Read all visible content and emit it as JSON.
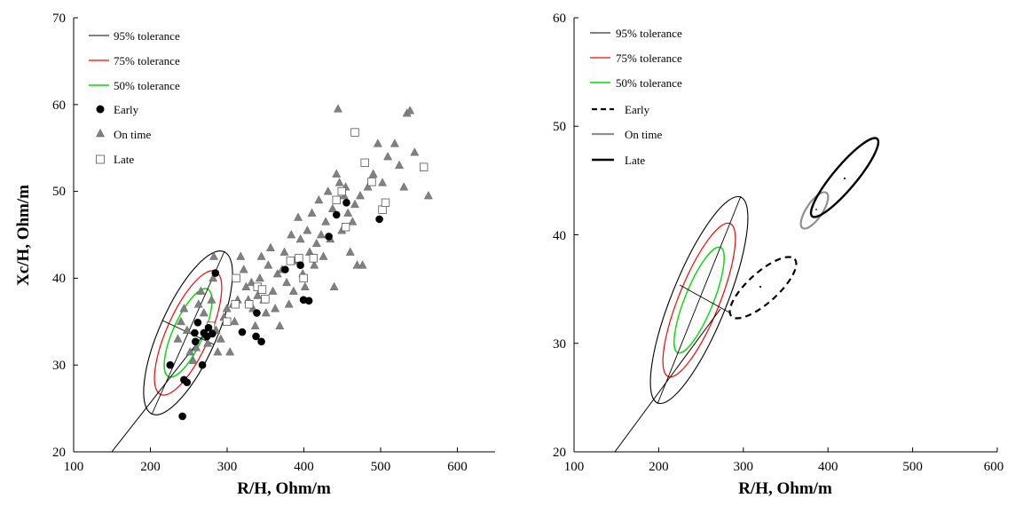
{
  "colors": {
    "tol95": "#000000",
    "tol75": "#ff0000",
    "tol50": "#00dd00",
    "ontime_fill": "#808080",
    "late_line": "#000000",
    "ontime_line": "#909090"
  },
  "chart_data": [
    {
      "type": "scatter",
      "xlabel": "R/H, Ohm/m",
      "ylabel": "Xc/H, Ohm/m",
      "xlim": [
        100,
        650
      ],
      "ylim": [
        20,
        70
      ],
      "xticks": [
        "100",
        "200",
        "300",
        "400",
        "500",
        "600"
      ],
      "yticks": [
        "20",
        "30",
        "40",
        "50",
        "60",
        "70"
      ],
      "legend_position": "top-left",
      "legend": [
        "95% tolerance",
        "75% tolerance",
        "50% tolerance",
        "Early",
        "On time",
        "Late"
      ],
      "tolerance_ellipses": [
        {
          "name": "95% tolerance",
          "center": [
            250,
            34
          ],
          "color": "#000000"
        },
        {
          "name": "75% tolerance",
          "center": [
            250,
            34
          ],
          "color": "#ff0000"
        },
        {
          "name": "50% tolerance",
          "center": [
            250,
            34
          ],
          "color": "#00dd00"
        }
      ],
      "reference_line": [
        [
          150,
          20
        ],
        [
          270,
          35
        ]
      ],
      "series": [
        {
          "name": "Early",
          "marker": "filled-circle",
          "points": [
            [
              242,
              24.1
            ],
            [
              244,
              28.3
            ],
            [
              248,
              28.0
            ],
            [
              226,
              30.0
            ],
            [
              268,
              30.0
            ],
            [
              259,
              32.7
            ],
            [
              274,
              33.3
            ],
            [
              258,
              33.7
            ],
            [
              270,
              33.7
            ],
            [
              262,
              34.9
            ],
            [
              276,
              34.3
            ],
            [
              281,
              33.6
            ],
            [
              285,
              40.6
            ],
            [
              320,
              33.8
            ],
            [
              338,
              33.3
            ],
            [
              339,
              36.0
            ],
            [
              345,
              32.7
            ],
            [
              376,
              41.0
            ],
            [
              396,
              41.5
            ],
            [
              400,
              37.5
            ],
            [
              407,
              37.4
            ],
            [
              433,
              44.8
            ],
            [
              443,
              47.3
            ],
            [
              456,
              48.7
            ],
            [
              499,
              46.8
            ]
          ]
        },
        {
          "name": "On time",
          "marker": "filled-triangle",
          "points": [
            [
              236,
              33.0
            ],
            [
              240,
              35.0
            ],
            [
              244,
              36.5
            ],
            [
              248,
              34.0
            ],
            [
              252,
              31.5
            ],
            [
              256,
              30.5
            ],
            [
              260,
              32.0
            ],
            [
              263,
              37.0
            ],
            [
              266,
              38.5
            ],
            [
              270,
              36.0
            ],
            [
              273,
              33.5
            ],
            [
              275,
              32.5
            ],
            [
              278,
              34.5
            ],
            [
              280,
              37.5
            ],
            [
              282,
              40.0
            ],
            [
              283,
              42.5
            ],
            [
              286,
              34.0
            ],
            [
              288,
              31.5
            ],
            [
              292,
              33.0
            ],
            [
              296,
              35.5
            ],
            [
              300,
              36.5
            ],
            [
              304,
              31.5
            ],
            [
              308,
              37.0
            ],
            [
              310,
              35.0
            ],
            [
              314,
              37.5
            ],
            [
              318,
              42.5
            ],
            [
              322,
              41.0
            ],
            [
              325,
              39.0
            ],
            [
              328,
              37.5
            ],
            [
              332,
              39.5
            ],
            [
              334,
              36.5
            ],
            [
              337,
              34.5
            ],
            [
              340,
              38.0
            ],
            [
              343,
              40.0
            ],
            [
              345,
              42.5
            ],
            [
              348,
              37.5
            ],
            [
              351,
              36.0
            ],
            [
              354,
              41.5
            ],
            [
              357,
              43.5
            ],
            [
              360,
              38.5
            ],
            [
              363,
              36.5
            ],
            [
              366,
              40.5
            ],
            [
              369,
              34.5
            ],
            [
              372,
              41.0
            ],
            [
              375,
              43.0
            ],
            [
              378,
              39.5
            ],
            [
              381,
              37.0
            ],
            [
              384,
              45.0
            ],
            [
              387,
              38.5
            ],
            [
              390,
              42.0
            ],
            [
              393,
              47.0
            ],
            [
              396,
              44.5
            ],
            [
              399,
              40.5
            ],
            [
              402,
              39.0
            ],
            [
              405,
              45.5
            ],
            [
              408,
              43.0
            ],
            [
              411,
              47.5
            ],
            [
              414,
              41.5
            ],
            [
              417,
              44.0
            ],
            [
              420,
              49.0
            ],
            [
              423,
              45.0
            ],
            [
              426,
              42.5
            ],
            [
              429,
              46.5
            ],
            [
              432,
              50.0
            ],
            [
              435,
              44.5
            ],
            [
              438,
              48.0
            ],
            [
              440,
              39.0
            ],
            [
              443,
              52.0
            ],
            [
              445,
              59.5
            ],
            [
              447,
              51.0
            ],
            [
              450,
              45.5
            ],
            [
              453,
              49.5
            ],
            [
              455,
              50.5
            ],
            [
              458,
              47.5
            ],
            [
              461,
              43.0
            ],
            [
              464,
              46.5
            ],
            [
              467,
              48.5
            ],
            [
              470,
              41.5
            ],
            [
              474,
              49.5
            ],
            [
              477,
              41.5
            ],
            [
              484,
              50.5
            ],
            [
              491,
              52.0
            ],
            [
              497,
              55.5
            ],
            [
              503,
              51.0
            ],
            [
              510,
              54.0
            ],
            [
              519,
              55.5
            ],
            [
              525,
              53.0
            ],
            [
              531,
              50.5
            ],
            [
              535,
              59.0
            ],
            [
              539,
              59.3
            ],
            [
              545,
              54.5
            ],
            [
              563,
              49.5
            ]
          ]
        },
        {
          "name": "Late",
          "marker": "open-square",
          "points": [
            [
              279,
              34.5
            ],
            [
              300,
              35.0
            ],
            [
              311,
              37.0
            ],
            [
              312,
              40.0
            ],
            [
              329,
              37.0
            ],
            [
              340,
              39.0
            ],
            [
              346,
              38.7
            ],
            [
              350,
              37.6
            ],
            [
              383,
              42.0
            ],
            [
              394,
              42.3
            ],
            [
              400,
              40.0
            ],
            [
              413,
              42.3
            ],
            [
              443,
              49.0
            ],
            [
              450,
              50.0
            ],
            [
              455,
              45.9
            ],
            [
              467,
              56.8
            ],
            [
              480,
              53.3
            ],
            [
              489,
              51.1
            ],
            [
              503,
              47.9
            ],
            [
              507,
              48.7
            ],
            [
              557,
              52.8
            ]
          ]
        }
      ]
    },
    {
      "type": "scatter",
      "xlabel": "R/H, Ohm/m",
      "ylabel": "",
      "xlim": [
        100,
        600
      ],
      "ylim": [
        20,
        60
      ],
      "xticks": [
        "100",
        "200",
        "300",
        "400",
        "500",
        "600"
      ],
      "yticks": [
        "20",
        "30",
        "40",
        "50",
        "60"
      ],
      "legend_position": "top-left",
      "legend": [
        "95% tolerance",
        "75% tolerance",
        "50% tolerance",
        "Early",
        "On time",
        "Late"
      ],
      "tolerance_ellipses": [
        {
          "name": "95% tolerance",
          "center": [
            250,
            34
          ],
          "color": "#000000"
        },
        {
          "name": "75% tolerance",
          "center": [
            250,
            34
          ],
          "color": "#ff0000"
        },
        {
          "name": "50% tolerance",
          "center": [
            250,
            34
          ],
          "color": "#00dd00"
        }
      ],
      "reference_line": [
        [
          150,
          20
        ],
        [
          270,
          35
        ]
      ],
      "group_ellipses": [
        {
          "name": "Early",
          "center": [
            324,
            35.0
          ],
          "style": "dashed"
        },
        {
          "name": "On time",
          "center": [
            382,
            42.0
          ],
          "style": "solid-gray"
        },
        {
          "name": "Late",
          "center": [
            420,
            45.2
          ],
          "style": "solid-black"
        }
      ]
    }
  ]
}
